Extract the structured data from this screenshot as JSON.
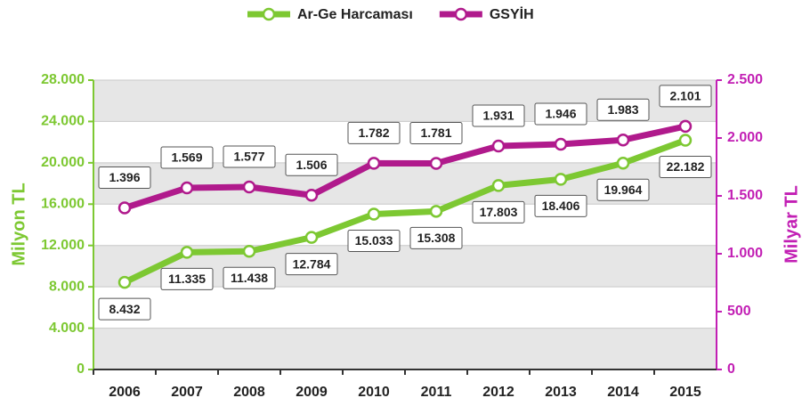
{
  "chart_data": {
    "type": "line",
    "categories": [
      "2006",
      "2007",
      "2008",
      "2009",
      "2010",
      "2011",
      "2012",
      "2013",
      "2014",
      "2015"
    ],
    "series": [
      {
        "name": "Ar-Ge Harcaması",
        "color": "#7dc832",
        "axis": "y",
        "values": [
          8432,
          11335,
          11438,
          12784,
          15033,
          15308,
          17803,
          18406,
          19964,
          22182
        ],
        "value_labels": [
          "8.432",
          "11.335",
          "11.438",
          "12.784",
          "15.033",
          "15.308",
          "17.803",
          "18.406",
          "19.964",
          "22.182"
        ]
      },
      {
        "name": "GSYİH",
        "color": "#b01a8c",
        "axis": "y2",
        "values": [
          1396,
          1569,
          1577,
          1506,
          1782,
          1781,
          1931,
          1946,
          1983,
          2101
        ],
        "value_labels": [
          "1.396",
          "1.569",
          "1.577",
          "1.506",
          "1.782",
          "1.781",
          "1.931",
          "1.946",
          "1.983",
          "2.101"
        ]
      }
    ],
    "ylabel": "Milyon TL",
    "y2label": "Milyar TL",
    "ylim": [
      0,
      28000
    ],
    "yticks": [
      0,
      {
        "value": 4000,
        "label": "4.000"
      },
      {
        "value": 8000,
        "label": "8.000"
      },
      {
        "value": 12000,
        "label": "12.000"
      },
      {
        "value": 16000,
        "label": "16.000"
      },
      {
        "value": 20000,
        "label": "20.000"
      },
      {
        "value": 24000,
        "label": "24.000"
      },
      {
        "value": 28000,
        "label": "28.000"
      }
    ],
    "y2lim": [
      0,
      2500
    ],
    "y2ticks": [
      0,
      500,
      {
        "value": 1000,
        "label": "1.000"
      },
      {
        "value": 1500,
        "label": "1.500"
      },
      {
        "value": 2000,
        "label": "2.000"
      },
      {
        "value": 2500,
        "label": "2.500"
      }
    ],
    "grid": true,
    "legend": "top"
  }
}
